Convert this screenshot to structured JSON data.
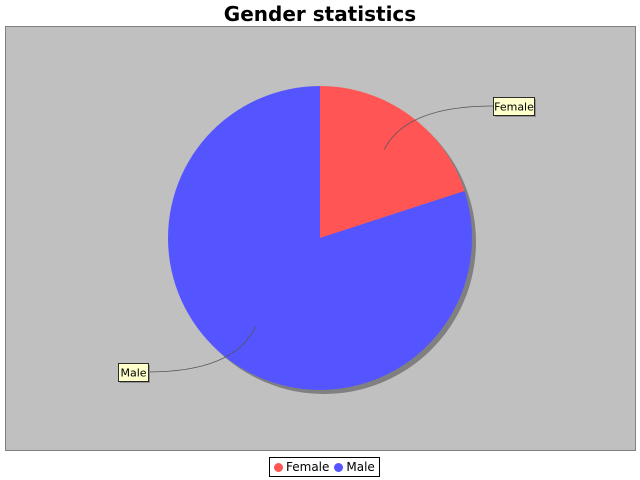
{
  "chart_data": {
    "type": "pie",
    "title": "Gender statistics",
    "slices": [
      {
        "label": "Female",
        "value": 20,
        "color": "#ff5555"
      },
      {
        "label": "Male",
        "value": 80,
        "color": "#5555ff"
      }
    ],
    "plot_background": "#c0c0c0",
    "legend_position": "bottom"
  }
}
